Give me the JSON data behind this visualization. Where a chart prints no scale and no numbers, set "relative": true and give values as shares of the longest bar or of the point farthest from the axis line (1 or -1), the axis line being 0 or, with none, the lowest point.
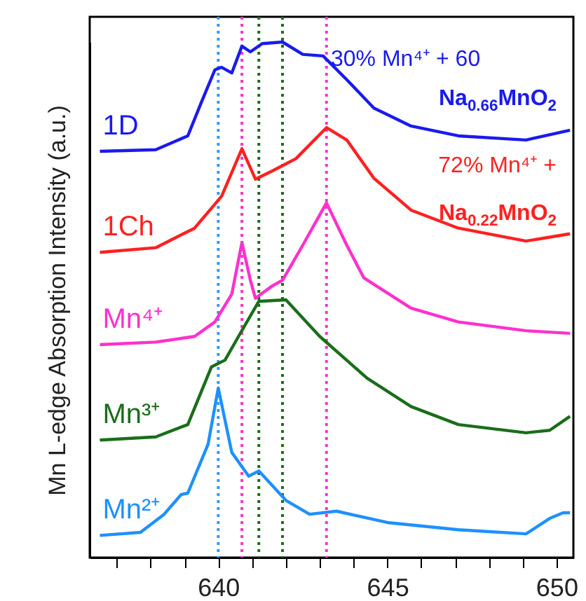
{
  "chart_data": {
    "type": "line",
    "relative": true,
    "ylabel": "Mn L-edge Absorption Intensity (a.u.)",
    "xlim": [
      636.2,
      650.5
    ],
    "xticks": [
      {
        "value": 637,
        "label": null
      },
      {
        "value": 638,
        "label": null
      },
      {
        "value": 639,
        "label": null
      },
      640,
      {
        "value": 641,
        "label": null
      },
      {
        "value": 642,
        "label": null
      },
      {
        "value": 643,
        "label": null
      },
      {
        "value": 644,
        "label": null
      },
      645,
      {
        "value": 646,
        "label": null
      },
      {
        "value": 647,
        "label": null
      },
      {
        "value": 648,
        "label": null
      },
      {
        "value": 649,
        "label": null
      },
      650
    ],
    "grid": false,
    "line_style": "solid",
    "marker": "none",
    "series": [
      {
        "name": "1D",
        "color": "#1a1aee",
        "x": [
          636.5,
          638.15,
          639.1,
          639.5,
          639.9,
          640.1,
          640.4,
          640.7,
          640.95,
          641.3,
          641.9,
          642.5,
          643.1,
          643.8,
          644.6,
          645.7,
          647.1,
          649.1,
          650.4
        ],
        "values": [
          0.788,
          0.791,
          0.818,
          0.883,
          0.946,
          0.951,
          0.94,
          0.992,
          0.981,
          0.997,
          1,
          0.976,
          0.973,
          0.927,
          0.872,
          0.837,
          0.818,
          0.81,
          0.829
        ]
      },
      {
        "name": "1Ch",
        "color": "#ff2020",
        "x": [
          636.5,
          638.15,
          639.3,
          640.1,
          640.7,
          641.1,
          641.6,
          642.3,
          643.2,
          643.8,
          644.6,
          645.7,
          647.1,
          649.1,
          650.4
        ],
        "values": [
          0.592,
          0.601,
          0.639,
          0.701,
          0.793,
          0.734,
          0.75,
          0.774,
          0.834,
          0.81,
          0.736,
          0.674,
          0.639,
          0.614,
          0.628
        ]
      },
      {
        "name": "Mn⁴⁺",
        "color": "#ff30cc",
        "x": [
          636.5,
          638.15,
          639.3,
          639.9,
          640.4,
          640.7,
          640.95,
          641.1,
          641.6,
          641.9,
          642.5,
          643.2,
          643.8,
          644.3,
          644.6,
          645.7,
          647.1,
          649.1,
          650.4
        ],
        "values": [
          0.413,
          0.418,
          0.429,
          0.457,
          0.511,
          0.611,
          0.538,
          0.503,
          0.527,
          0.538,
          0.606,
          0.688,
          0.606,
          0.543,
          0.53,
          0.484,
          0.457,
          0.44,
          0.435
        ]
      },
      {
        "name": "Mn³⁺",
        "color": "#1a6e1a",
        "x": [
          636.5,
          638.15,
          639.1,
          639.8,
          640.2,
          640.6,
          641.2,
          642.0,
          643.0,
          644.4,
          645.7,
          647.1,
          649.1,
          649.8,
          650.4
        ],
        "values": [
          0.228,
          0.234,
          0.258,
          0.37,
          0.383,
          0.429,
          0.497,
          0.5,
          0.429,
          0.348,
          0.293,
          0.258,
          0.242,
          0.247,
          0.274
        ]
      },
      {
        "name": "Mn²⁺",
        "color": "#1e90ff",
        "x": [
          636.5,
          637.7,
          638.4,
          638.9,
          639.1,
          639.7,
          640.0,
          640.4,
          640.9,
          641.2,
          642.0,
          642.7,
          643.5,
          645.0,
          647.1,
          649.1,
          649.8,
          650.2,
          650.4
        ],
        "values": [
          0.043,
          0.049,
          0.084,
          0.122,
          0.125,
          0.22,
          0.329,
          0.204,
          0.158,
          0.168,
          0.111,
          0.084,
          0.09,
          0.068,
          0.054,
          0.046,
          0.076,
          0.087,
          0.087
        ]
      }
    ],
    "ref_lines": [
      {
        "axis": "x",
        "value": 640.0,
        "color": "#3399ff",
        "line_style": "dotted"
      },
      {
        "axis": "x",
        "value": 640.7,
        "color": "#ff30cc",
        "line_style": "dotted"
      },
      {
        "axis": "x",
        "value": 643.2,
        "color": "#ff30cc",
        "line_style": "dotted"
      },
      {
        "axis": "x",
        "value": 641.2,
        "color": "#1a6e1a",
        "line_style": "dotted"
      },
      {
        "axis": "x",
        "value": 641.9,
        "color": "#1a6e1a",
        "line_style": "dotted"
      }
    ],
    "annotations": [
      "30% Mn⁴⁺ + 60",
      "Na$_{0.66}$MnO$_{2}$",
      "72% Mn⁴⁺ +",
      "Na$_{0.22}$MnO$_{2}$"
    ]
  }
}
